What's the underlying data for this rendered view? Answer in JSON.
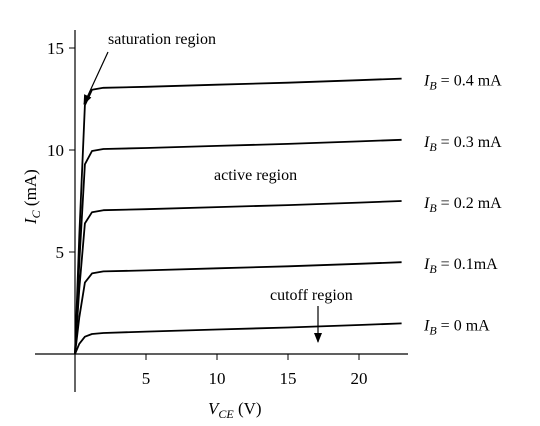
{
  "chart_data": {
    "type": "line",
    "title": "",
    "xlabel": {
      "main": "V",
      "sub": "CE",
      "unit": " (V)"
    },
    "ylabel": {
      "main": "I",
      "sub": "C",
      "unit": " (mA)"
    },
    "xlim": [
      -2,
      24
    ],
    "ylim": [
      0,
      16
    ],
    "xticks": [
      5,
      10,
      15,
      20
    ],
    "yticks": [
      5,
      10,
      15
    ],
    "grid": false,
    "series": [
      {
        "name": "I_B = 0 mA",
        "label": {
          "pre": "I",
          "sub": "B",
          "post": " = 0 mA"
        },
        "x": [
          0,
          0.3,
          0.7,
          1.2,
          2,
          5,
          10,
          15,
          20,
          23
        ],
        "y": [
          0,
          0.5,
          0.85,
          0.98,
          1.03,
          1.1,
          1.2,
          1.3,
          1.42,
          1.5
        ]
      },
      {
        "name": "I_B = 0.1mA",
        "label": {
          "pre": "I",
          "sub": "B",
          "post": " = 0.1mA"
        },
        "x": [
          0,
          0.3,
          0.7,
          1.2,
          2,
          5,
          10,
          15,
          20,
          23
        ],
        "y": [
          0,
          1.8,
          3.5,
          3.95,
          4.05,
          4.1,
          4.2,
          4.3,
          4.42,
          4.5
        ]
      },
      {
        "name": "I_B = 0.2 mA",
        "label": {
          "pre": "I",
          "sub": "B",
          "post": " = 0.2 mA"
        },
        "x": [
          0,
          0.3,
          0.7,
          1.2,
          2,
          5,
          10,
          15,
          20,
          23
        ],
        "y": [
          0,
          3.2,
          6.4,
          6.95,
          7.05,
          7.1,
          7.2,
          7.3,
          7.42,
          7.5
        ]
      },
      {
        "name": "I_B = 0.3 mA",
        "label": {
          "pre": "I",
          "sub": "B",
          "post": " = 0.3 mA"
        },
        "x": [
          0,
          0.3,
          0.7,
          1.2,
          2,
          5,
          10,
          15,
          20,
          23
        ],
        "y": [
          0,
          4.5,
          9.3,
          9.95,
          10.05,
          10.1,
          10.2,
          10.3,
          10.42,
          10.5
        ]
      },
      {
        "name": "I_B = 0.4 mA",
        "label": {
          "pre": "I",
          "sub": "B",
          "post": " = 0.4 mA"
        },
        "x": [
          0,
          0.3,
          0.7,
          1.2,
          2,
          5,
          10,
          15,
          20,
          23
        ],
        "y": [
          0,
          5.8,
          12.2,
          12.95,
          13.05,
          13.1,
          13.2,
          13.3,
          13.42,
          13.5
        ]
      }
    ],
    "annotations": [
      {
        "text": "saturation region",
        "arrow": true
      },
      {
        "text": "active region",
        "arrow": false
      },
      {
        "text": "cutoff region",
        "arrow": true
      }
    ]
  }
}
